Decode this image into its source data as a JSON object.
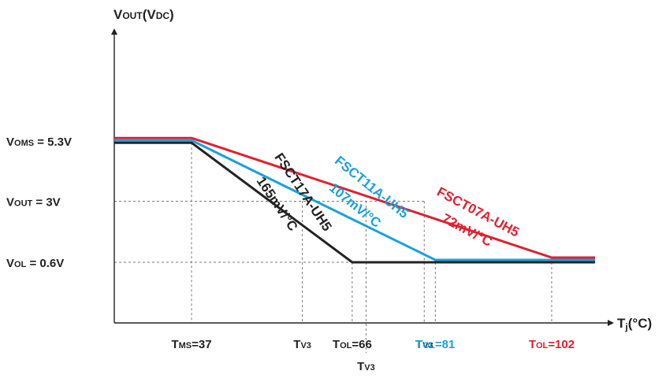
{
  "chart_data": {
    "type": "line",
    "title": "",
    "y_axis_label": {
      "main": "V",
      "sub": "OUT",
      "mid": "(V",
      "sub2": "DC",
      "end": ")"
    },
    "x_axis_label": {
      "main": "T",
      "sub": "j",
      "end": "(°C)"
    },
    "y_levels": [
      {
        "name": "V",
        "sub": "OMS",
        "text": " = 5.3V",
        "value": 5.3
      },
      {
        "name": "V",
        "sub": "OUT",
        "text": " = 3V",
        "value": 3.0
      },
      {
        "name": "V",
        "sub": "OL",
        "text": " = 0.6V",
        "value": 0.6
      }
    ],
    "x_ticks": [
      {
        "main": "T",
        "sub": "MS",
        "text": "=37",
        "value": 37,
        "color": "#222222",
        "row": 1
      },
      {
        "main": "T",
        "sub": "V3",
        "text": "",
        "value": 57,
        "color": "#222222",
        "row": 1
      },
      {
        "main": "T",
        "sub": "OL",
        "text": "=66",
        "value": 66,
        "color": "#222222",
        "row": 1
      },
      {
        "main": "T",
        "sub": "V3",
        "text": "",
        "value": 68.5,
        "color": "#222222",
        "row": 2
      },
      {
        "main": "T",
        "sub": "V3",
        "text": "",
        "value": 79,
        "color": "#222222",
        "row": 1
      },
      {
        "main": "T",
        "sub": "OL",
        "text": "=81",
        "value": 81,
        "color": "#1aa0dc",
        "row": 1
      },
      {
        "main": "T",
        "sub": "OL",
        "text": "=102",
        "value": 102,
        "color": "#e02030",
        "row": 1
      }
    ],
    "series": [
      {
        "name": "FSCT07A-UH5",
        "slope": "72mV/°C",
        "color": "#e02030",
        "x": [
          20,
          37,
          102,
          120
        ],
        "y": [
          5.3,
          5.3,
          0.6,
          0.6
        ]
      },
      {
        "name": "FSCT11A-UH5",
        "slope": "107mV/°C",
        "color": "#1aa0dc",
        "x": [
          20,
          37,
          81,
          120
        ],
        "y": [
          5.3,
          5.3,
          0.6,
          0.6
        ]
      },
      {
        "name": "FSCT17A-UH5",
        "slope": "165mV/°C",
        "color": "#222222",
        "x": [
          20,
          37,
          66,
          120
        ],
        "y": [
          5.3,
          5.3,
          0.6,
          0.6
        ]
      }
    ],
    "grid": false,
    "legend": "none"
  }
}
